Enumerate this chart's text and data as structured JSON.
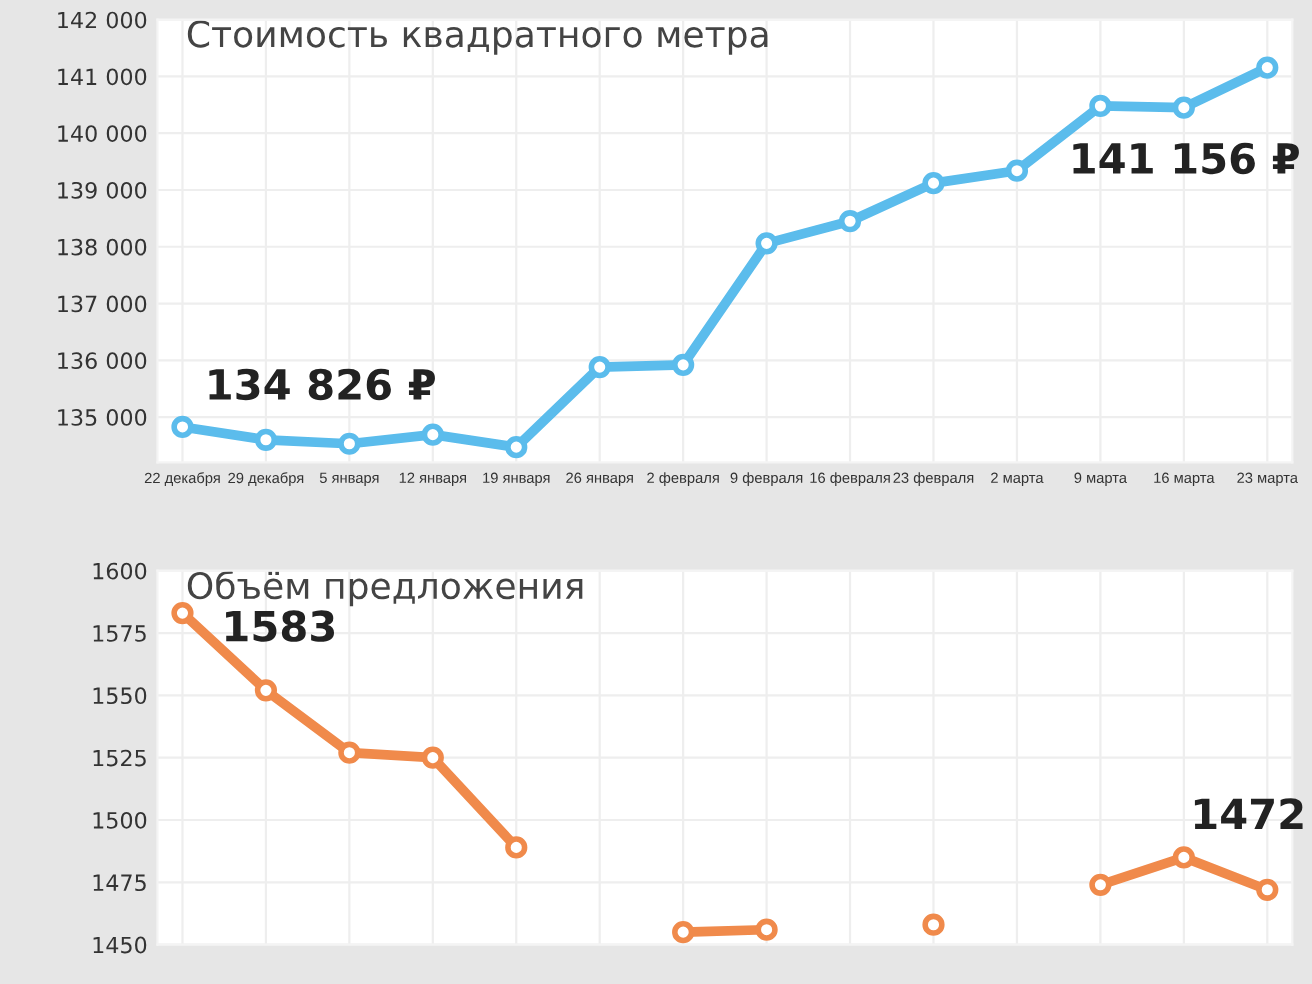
{
  "chart_data": [
    {
      "type": "line",
      "title": "Стоимость квадратного метра",
      "categories": [
        "22 декабря",
        "29 декабря",
        "5 января",
        "12 января",
        "19 января",
        "26 января",
        "2 февраля",
        "9 февраля",
        "16 февраля",
        "23 февраля",
        "2 марта",
        "9 марта",
        "16 марта",
        "23 марта"
      ],
      "series": [
        {
          "color": "#5bbcec",
          "values": [
            134826,
            134600,
            134530,
            134690,
            134470,
            135880,
            135920,
            138060,
            138450,
            139120,
            139340,
            140480,
            140450,
            141156
          ]
        }
      ],
      "ylim": [
        134200,
        142000
      ],
      "yticks": [
        {
          "value": 135000,
          "label": "135 000"
        },
        {
          "value": 136000,
          "label": "136 000"
        },
        {
          "value": 137000,
          "label": "137 000"
        },
        {
          "value": 138000,
          "label": "138 000"
        },
        {
          "value": 139000,
          "label": "139 000"
        },
        {
          "value": 140000,
          "label": "140 000"
        },
        {
          "value": 141000,
          "label": "141 000"
        },
        {
          "value": 142000,
          "label": "142 000"
        }
      ],
      "annotations": [
        {
          "text": "134 826 ₽",
          "x": "22 декабря",
          "y": 134826
        },
        {
          "text": "141 156 ₽",
          "x": "23 марта",
          "y": 141156
        }
      ],
      "grid": true,
      "marker": "circle",
      "line_style": "solid",
      "legend": false
    },
    {
      "type": "line",
      "title": "Объём предложения",
      "categories": [
        "22 декабря",
        "29 декабря",
        "5 января",
        "12 января",
        "19 января",
        "26 января",
        "2 февраля",
        "9 февраля",
        "16 февраля",
        "23 февраля",
        "2 марта",
        "9 марта",
        "16 марта",
        "23 марта"
      ],
      "series": [
        {
          "color": "#f08a4b",
          "values": [
            1583,
            1552,
            1527,
            1525,
            1489,
            null,
            1455,
            1456,
            null,
            1458,
            null,
            1474,
            1485,
            1472
          ]
        }
      ],
      "ylim": [
        1450,
        1600
      ],
      "yticks": [
        1450,
        1475,
        1500,
        1525,
        1550,
        1575,
        1600
      ],
      "tick_labels": "y",
      "annotations": [
        {
          "text": "1583",
          "x": "22 декабря",
          "y": 1583
        },
        {
          "text": "1472",
          "x": "23 марта",
          "y": 1472
        }
      ],
      "grid": true,
      "marker": "circle",
      "line_style": "solid",
      "legend": false
    }
  ]
}
